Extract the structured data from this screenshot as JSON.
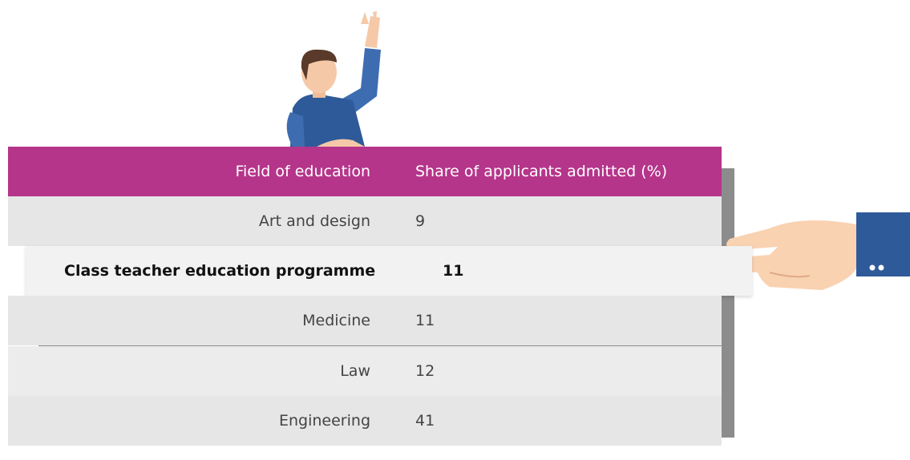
{
  "table": {
    "header": [
      "Field of education",
      "Share of applicants admitted (%)"
    ],
    "rows": [
      [
        "Art and design",
        9
      ],
      [
        "Class teacher education programme",
        11
      ],
      [
        "Medicine",
        11
      ],
      [
        "Law",
        12
      ],
      [
        "Engineering",
        41
      ]
    ]
  }
}
